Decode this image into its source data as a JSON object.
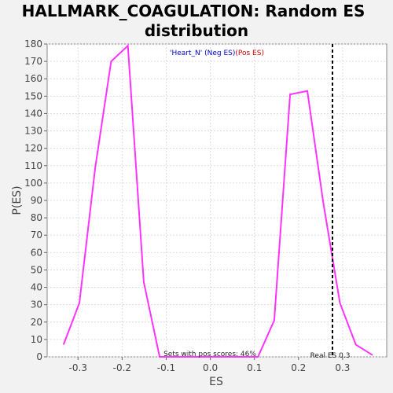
{
  "title_line1": "HALLMARK_COAGULATION: Random ES",
  "title_line2": "distribution",
  "legend": {
    "part1": "'Heart_N' ",
    "part2": "(Neg ES)",
    "part3": "(Pos ES)",
    "color1": "#0000cc",
    "color2": "#0000cc",
    "color3": "#cc0000"
  },
  "annotations": {
    "pos_scores": "Sets with pos scores: 46%",
    "real_es": "Real ES 0.3"
  },
  "colors": {
    "line": "#ff33ff",
    "background": "#f2f2f2",
    "plot_background": "#ffffff",
    "grid": "#dddddd",
    "real_es_line": "#000000"
  },
  "chart_data": {
    "type": "line",
    "title": "HALLMARK_COAGULATION: Random ES distribution",
    "xlabel": "ES",
    "ylabel": "P(ES)",
    "xlim": [
      -0.37,
      0.4
    ],
    "ylim": [
      0,
      180
    ],
    "xticks": [
      -0.3,
      -0.2,
      -0.1,
      0.0,
      0.1,
      0.2,
      0.3
    ],
    "xtick_labels": [
      "-0.3",
      "-0.2",
      "-0.1",
      "0.0",
      "0.1",
      "0.2",
      "0.3"
    ],
    "yticks": [
      0,
      10,
      20,
      30,
      40,
      50,
      60,
      70,
      80,
      90,
      100,
      110,
      120,
      130,
      140,
      150,
      160,
      170,
      180
    ],
    "grid": true,
    "series": [
      {
        "x": [
          -0.333,
          -0.297,
          -0.261,
          -0.225,
          -0.187,
          -0.151,
          -0.115,
          -0.079,
          -0.043,
          0.0,
          0.032,
          0.068,
          0.108,
          0.145,
          0.181,
          0.22,
          0.256,
          0.294,
          0.33,
          0.368
        ],
        "values": [
          7,
          31,
          109,
          170,
          179,
          43,
          0,
          0,
          0,
          0,
          0,
          0,
          0,
          21,
          151,
          153,
          89,
          31,
          7,
          1
        ]
      }
    ],
    "real_es": 0.277
  }
}
